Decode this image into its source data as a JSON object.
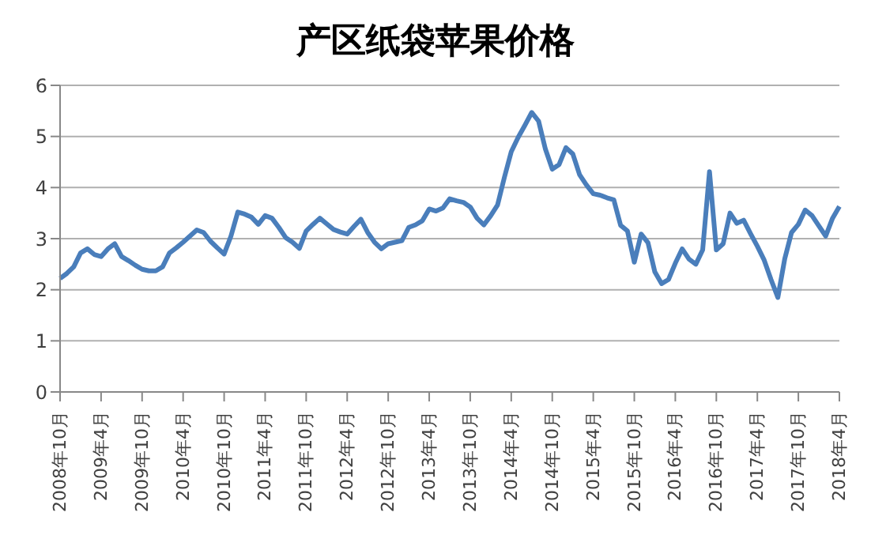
{
  "chart_data": {
    "type": "line",
    "title": "产区纸袋苹果价格",
    "categories": [
      "2008年10月",
      null,
      null,
      null,
      null,
      null,
      "2009年4月",
      null,
      null,
      null,
      null,
      null,
      "2009年10月",
      null,
      null,
      null,
      null,
      null,
      "2010年4月",
      null,
      null,
      null,
      null,
      null,
      "2010年10月",
      null,
      null,
      null,
      null,
      null,
      "2011年4月",
      null,
      null,
      null,
      null,
      null,
      "2011年10月",
      null,
      null,
      null,
      null,
      null,
      "2012年4月",
      null,
      null,
      null,
      null,
      null,
      "2012年10月",
      null,
      null,
      null,
      null,
      null,
      "2013年4月",
      null,
      null,
      null,
      null,
      null,
      "2013年10月",
      null,
      null,
      null,
      null,
      null,
      "2014年4月",
      null,
      null,
      null,
      null,
      null,
      "2014年10月",
      null,
      null,
      null,
      null,
      null,
      "2015年4月",
      null,
      null,
      null,
      null,
      null,
      "2015年10月",
      null,
      null,
      null,
      null,
      null,
      "2016年4月",
      null,
      null,
      null,
      null,
      null,
      "2016年10月",
      null,
      null,
      null,
      null,
      null,
      "2017年4月",
      null,
      null,
      null,
      null,
      null,
      "2017年10月",
      null,
      null,
      null,
      null,
      null,
      "2018年4月"
    ],
    "series": [
      {
        "color": "#4a7ebb",
        "values": [
          2.22,
          2.32,
          2.45,
          2.72,
          2.8,
          2.69,
          2.65,
          2.8,
          2.9,
          2.65,
          2.57,
          2.48,
          2.4,
          2.37,
          2.37,
          2.45,
          2.72,
          2.82,
          2.93,
          3.05,
          3.17,
          3.12,
          2.95,
          2.82,
          2.7,
          3.05,
          3.52,
          3.48,
          3.42,
          3.28,
          3.45,
          3.4,
          3.22,
          3.02,
          2.93,
          2.81,
          3.15,
          3.28,
          3.4,
          3.29,
          3.18,
          3.13,
          3.09,
          3.24,
          3.38,
          3.12,
          2.93,
          2.8,
          2.9,
          2.93,
          2.96,
          3.22,
          3.27,
          3.35,
          3.58,
          3.54,
          3.6,
          3.78,
          3.74,
          3.71,
          3.62,
          3.4,
          3.27,
          3.45,
          3.66,
          4.2,
          4.7,
          4.98,
          5.22,
          5.47,
          5.3,
          4.75,
          4.36,
          4.45,
          4.78,
          4.66,
          4.25,
          4.05,
          3.88,
          3.85,
          3.8,
          3.76,
          3.26,
          3.15,
          2.54,
          3.09,
          2.92,
          2.35,
          2.12,
          2.2,
          2.52,
          2.8,
          2.6,
          2.5,
          2.78,
          4.31,
          2.78,
          2.9,
          3.5,
          3.3,
          3.36,
          3.1,
          2.85,
          2.58,
          2.2,
          1.85,
          2.6,
          3.12,
          3.28,
          3.56,
          3.45,
          3.25,
          3.05,
          3.4,
          3.63
        ]
      }
    ],
    "ylim": [
      0,
      6
    ],
    "yticks": [
      0,
      1,
      2,
      3,
      4,
      5,
      6
    ],
    "grid": "y",
    "legend": false,
    "marker": "none",
    "line_style": "solid"
  }
}
